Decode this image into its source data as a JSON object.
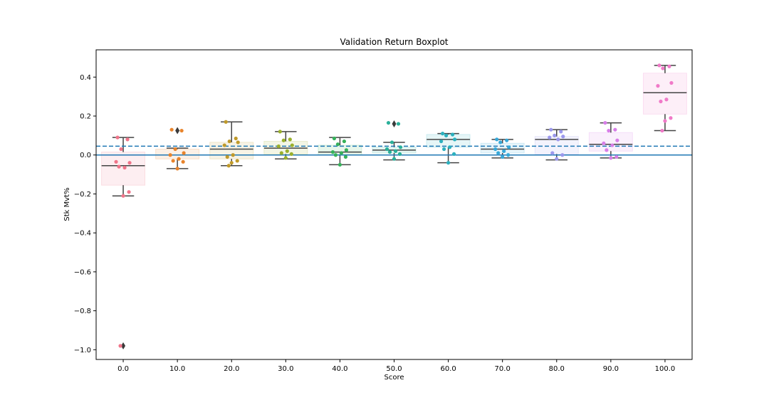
{
  "chart_data": {
    "type": "box",
    "title": "Validation Return Boxplot",
    "xlabel": "Score",
    "ylabel": "Stk Mvt%",
    "ylim": [
      -1.05,
      0.54
    ],
    "yticks": [
      -1.0,
      -0.8,
      -0.6,
      -0.4,
      -0.2,
      0.0,
      0.2,
      0.4
    ],
    "ytick_labels": [
      "−1.0",
      "−0.8",
      "−0.6",
      "−0.4",
      "−0.2",
      "0.0",
      "0.2",
      "0.4"
    ],
    "categories": [
      "0.0",
      "10.0",
      "20.0",
      "30.0",
      "40.0",
      "50.0",
      "60.0",
      "70.0",
      "80.0",
      "90.0",
      "100.0"
    ],
    "reference_lines": [
      {
        "style": "solid",
        "value": 0.0,
        "color": "#1f77b4"
      },
      {
        "style": "dashed",
        "value": 0.045,
        "color": "#1f77b4"
      }
    ],
    "groups": [
      {
        "category": "0.0",
        "color": "#f0758a",
        "q1": -0.155,
        "median": -0.055,
        "q3": 0.015,
        "whisker_low": -0.21,
        "whisker_high": 0.09,
        "outliers": [
          -0.98
        ],
        "points": [
          0.09,
          0.08,
          0.03,
          -0.04,
          -0.035,
          -0.065,
          -0.06,
          -0.19,
          -0.21,
          -0.98
        ]
      },
      {
        "category": "10.0",
        "color": "#e8842c",
        "q1": -0.02,
        "median": 0.0,
        "q3": 0.03,
        "whisker_low": -0.07,
        "whisker_high": 0.035,
        "outliers": [
          0.125
        ],
        "points": [
          0.13,
          0.125,
          0.03,
          0.01,
          0.0,
          -0.02,
          -0.03,
          -0.035,
          -0.07
        ]
      },
      {
        "category": "20.0",
        "color": "#c09a2a",
        "q1": -0.02,
        "median": 0.03,
        "q3": 0.065,
        "whisker_low": -0.055,
        "whisker_high": 0.17,
        "outliers": [],
        "points": [
          0.17,
          0.085,
          0.07,
          0.065,
          0.05,
          0.0,
          -0.01,
          -0.03,
          -0.04,
          -0.055
        ]
      },
      {
        "category": "30.0",
        "color": "#9ab02c",
        "q1": 0.005,
        "median": 0.035,
        "q3": 0.07,
        "whisker_low": -0.02,
        "whisker_high": 0.12,
        "outliers": [],
        "points": [
          0.12,
          0.08,
          0.075,
          0.05,
          0.045,
          0.02,
          0.01,
          0.005,
          -0.015
        ]
      },
      {
        "category": "40.0",
        "color": "#36b15a",
        "q1": 0.0,
        "median": 0.015,
        "q3": 0.05,
        "whisker_low": -0.05,
        "whisker_high": 0.09,
        "outliers": [],
        "points": [
          0.085,
          0.07,
          0.055,
          0.025,
          0.015,
          0.01,
          0.0,
          -0.01,
          -0.05
        ]
      },
      {
        "category": "50.0",
        "color": "#2ab09a",
        "q1": 0.01,
        "median": 0.025,
        "q3": 0.04,
        "whisker_low": -0.025,
        "whisker_high": 0.065,
        "outliers": [
          0.16
        ],
        "points": [
          0.165,
          0.16,
          0.065,
          0.04,
          0.03,
          0.02,
          0.015,
          0.005,
          -0.02
        ]
      },
      {
        "category": "60.0",
        "color": "#2cb0be",
        "q1": 0.04,
        "median": 0.08,
        "q3": 0.105,
        "whisker_low": -0.04,
        "whisker_high": 0.11,
        "outliers": [],
        "points": [
          0.11,
          0.105,
          0.1,
          0.08,
          0.07,
          0.04,
          0.03,
          0.005,
          -0.04
        ]
      },
      {
        "category": "70.0",
        "color": "#36a8d8",
        "q1": 0.01,
        "median": 0.03,
        "q3": 0.06,
        "whisker_low": -0.015,
        "whisker_high": 0.08,
        "outliers": [],
        "points": [
          0.08,
          0.075,
          0.065,
          0.04,
          0.03,
          0.02,
          0.01,
          0.0,
          -0.01
        ]
      },
      {
        "category": "80.0",
        "color": "#9b98ec",
        "q1": 0.005,
        "median": 0.08,
        "q3": 0.095,
        "whisker_low": -0.025,
        "whisker_high": 0.13,
        "outliers": [],
        "points": [
          0.13,
          0.12,
          0.1,
          0.095,
          0.09,
          0.08,
          0.01,
          0.0,
          -0.02
        ]
      },
      {
        "category": "90.0",
        "color": "#d87ee8",
        "q1": 0.02,
        "median": 0.055,
        "q3": 0.115,
        "whisker_low": -0.015,
        "whisker_high": 0.165,
        "outliers": [],
        "points": [
          0.165,
          0.13,
          0.125,
          0.075,
          0.06,
          0.05,
          0.025,
          -0.01,
          -0.015
        ]
      },
      {
        "category": "100.0",
        "color": "#f07ac8",
        "q1": 0.21,
        "median": 0.32,
        "q3": 0.42,
        "whisker_low": 0.125,
        "whisker_high": 0.46,
        "outliers": [],
        "points": [
          0.46,
          0.455,
          0.445,
          0.37,
          0.355,
          0.285,
          0.275,
          0.19,
          0.175,
          0.125
        ]
      }
    ]
  }
}
